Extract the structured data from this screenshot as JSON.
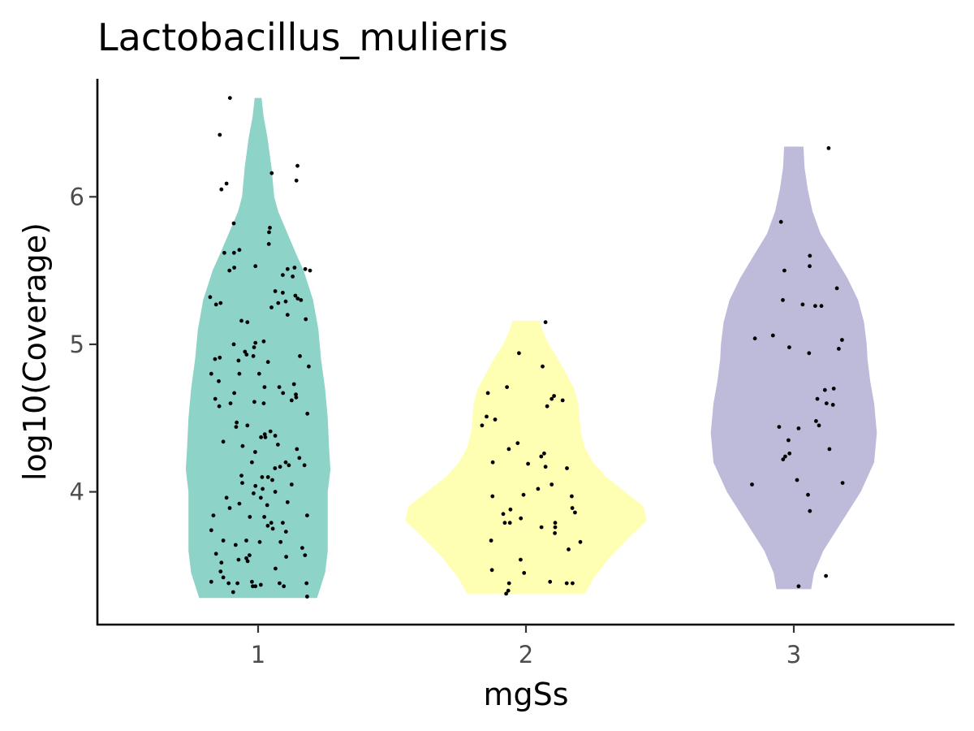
{
  "chart_data": {
    "type": "violin",
    "title": "Lactobacillus_mulieris",
    "xlabel": "mgSs",
    "ylabel": "log10(Coverage)",
    "categories": [
      "1",
      "2",
      "3"
    ],
    "x_range": [
      0.4,
      3.6
    ],
    "ylim": [
      3.1,
      6.8
    ],
    "y_ticks": [
      4,
      5,
      6
    ],
    "grid": false,
    "legend": "none",
    "series": [
      {
        "category": "1",
        "color": "#8DD3C7",
        "range": [
          3.28,
          6.67
        ],
        "density": [
          [
            3.28,
            0.22
          ],
          [
            3.45,
            0.25
          ],
          [
            3.6,
            0.26
          ],
          [
            3.8,
            0.26
          ],
          [
            4.0,
            0.26
          ],
          [
            4.15,
            0.27
          ],
          [
            4.3,
            0.265
          ],
          [
            4.5,
            0.26
          ],
          [
            4.7,
            0.25
          ],
          [
            4.9,
            0.235
          ],
          [
            5.1,
            0.225
          ],
          [
            5.3,
            0.205
          ],
          [
            5.5,
            0.17
          ],
          [
            5.6,
            0.145
          ],
          [
            5.75,
            0.11
          ],
          [
            5.9,
            0.075
          ],
          [
            6.0,
            0.06
          ],
          [
            6.2,
            0.05
          ],
          [
            6.4,
            0.035
          ],
          [
            6.55,
            0.02
          ],
          [
            6.67,
            0.013
          ]
        ],
        "points": [
          [
            0.825,
            3.39
          ],
          [
            0.89,
            3.38
          ],
          [
            0.923,
            3.38
          ],
          [
            0.977,
            3.39
          ],
          [
            0.99,
            3.36
          ],
          [
            1.08,
            3.38
          ],
          [
            1.096,
            3.36
          ],
          [
            1.181,
            3.38
          ],
          [
            1.183,
            3.29
          ],
          [
            0.907,
            3.32
          ],
          [
            0.98,
            3.36
          ],
          [
            0.87,
            3.42
          ],
          [
            1.01,
            3.37
          ],
          [
            0.86,
            3.46
          ],
          [
            0.927,
            3.54
          ],
          [
            0.956,
            3.55
          ],
          [
            0.961,
            3.53
          ],
          [
            1.065,
            3.48
          ],
          [
            1.105,
            3.56
          ],
          [
            1.175,
            3.57
          ],
          [
            0.863,
            3.52
          ],
          [
            0.968,
            3.57
          ],
          [
            0.843,
            3.58
          ],
          [
            0.916,
            3.64
          ],
          [
            1.084,
            3.66
          ],
          [
            1.165,
            3.62
          ],
          [
            1.006,
            3.66
          ],
          [
            0.956,
            3.67
          ],
          [
            1.104,
            3.73
          ],
          [
            0.87,
            3.67
          ],
          [
            0.825,
            3.74
          ],
          [
            1.055,
            3.75
          ],
          [
            1.036,
            3.77
          ],
          [
            1.049,
            3.79
          ],
          [
            1.092,
            3.79
          ],
          [
            0.833,
            3.84
          ],
          [
            1.183,
            3.84
          ],
          [
            0.969,
            3.83
          ],
          [
            1.023,
            3.83
          ],
          [
            0.894,
            3.89
          ],
          [
            0.93,
            3.92
          ],
          [
            1.034,
            3.91
          ],
          [
            0.882,
            3.96
          ],
          [
            0.983,
            3.99
          ],
          [
            1.01,
            3.96
          ],
          [
            1.11,
            3.93
          ],
          [
            1.064,
            4.0
          ],
          [
            0.99,
            4.04
          ],
          [
            1.017,
            4.02
          ],
          [
            1.053,
            4.08
          ],
          [
            0.941,
            4.06
          ],
          [
            1.125,
            4.05
          ],
          [
            1.015,
            4.1
          ],
          [
            1.037,
            4.1
          ],
          [
            0.938,
            4.11
          ],
          [
            1.063,
            4.16
          ],
          [
            1.082,
            4.17
          ],
          [
            1.103,
            4.2
          ],
          [
            1.115,
            4.18
          ],
          [
            1.173,
            4.18
          ],
          [
            0.977,
            4.2
          ],
          [
            1.154,
            4.23
          ],
          [
            1.145,
            4.29
          ],
          [
            0.989,
            4.27
          ],
          [
            0.942,
            4.31
          ],
          [
            0.87,
            4.34
          ],
          [
            1.074,
            4.32
          ],
          [
            1.011,
            4.37
          ],
          [
            1.027,
            4.37
          ],
          [
            1.064,
            4.38
          ],
          [
            1.025,
            4.39
          ],
          [
            1.046,
            4.41
          ],
          [
            0.918,
            4.44
          ],
          [
            0.96,
            4.45
          ],
          [
            0.92,
            4.47
          ],
          [
            1.184,
            4.53
          ],
          [
            0.855,
            4.58
          ],
          [
            0.897,
            4.6
          ],
          [
            0.986,
            4.61
          ],
          [
            1.021,
            4.6
          ],
          [
            1.125,
            4.62
          ],
          [
            1.142,
            4.64
          ],
          [
            0.84,
            4.63
          ],
          [
            1.093,
            4.67
          ],
          [
            0.911,
            4.67
          ],
          [
            1.141,
            4.66
          ],
          [
            1.024,
            4.71
          ],
          [
            1.079,
            4.71
          ],
          [
            1.134,
            4.73
          ],
          [
            0.853,
            4.75
          ],
          [
            0.93,
            4.8
          ],
          [
            0.825,
            4.8
          ],
          [
            1.004,
            4.8
          ],
          [
            1.189,
            4.85
          ],
          [
            0.839,
            4.9
          ],
          [
            0.857,
            4.91
          ],
          [
            0.927,
            4.89
          ],
          [
            0.982,
            4.92
          ],
          [
            0.957,
            4.93
          ],
          [
            1.037,
            4.88
          ],
          [
            1.156,
            4.92
          ],
          [
            0.951,
            4.95
          ],
          [
            0.985,
            4.98
          ],
          [
            0.909,
            5.0
          ],
          [
            0.99,
            5.01
          ],
          [
            1.021,
            5.02
          ],
          [
            1.178,
            5.17
          ],
          [
            0.96,
            5.15
          ],
          [
            0.938,
            5.16
          ],
          [
            1.11,
            5.2
          ],
          [
            1.05,
            5.25
          ],
          [
            1.075,
            5.28
          ],
          [
            1.103,
            5.29
          ],
          [
            0.843,
            5.27
          ],
          [
            0.86,
            5.28
          ],
          [
            1.148,
            5.31
          ],
          [
            1.16,
            5.3
          ],
          [
            1.139,
            5.33
          ],
          [
            1.092,
            5.35
          ],
          [
            1.064,
            5.36
          ],
          [
            0.821,
            5.32
          ],
          [
            1.129,
            5.46
          ],
          [
            1.092,
            5.47
          ],
          [
            1.176,
            5.51
          ],
          [
            1.136,
            5.52
          ],
          [
            0.99,
            5.53
          ],
          [
            1.194,
            5.5
          ],
          [
            1.11,
            5.51
          ],
          [
            0.893,
            5.5
          ],
          [
            0.911,
            5.52
          ],
          [
            0.91,
            5.62
          ],
          [
            0.874,
            5.62
          ],
          [
            0.93,
            5.64
          ],
          [
            1.04,
            5.68
          ],
          [
            1.041,
            5.76
          ],
          [
            1.044,
            5.79
          ],
          [
            0.909,
            5.82
          ],
          [
            0.863,
            6.05
          ],
          [
            0.882,
            6.09
          ],
          [
            1.051,
            6.16
          ],
          [
            1.143,
            6.11
          ],
          [
            1.147,
            6.21
          ],
          [
            0.857,
            6.42
          ],
          [
            0.895,
            6.67
          ]
        ]
      },
      {
        "category": "2",
        "color": "#FFFFB3",
        "range": [
          3.31,
          5.16
        ],
        "density": [
          [
            3.31,
            0.22
          ],
          [
            3.42,
            0.255
          ],
          [
            3.55,
            0.31
          ],
          [
            3.7,
            0.39
          ],
          [
            3.8,
            0.45
          ],
          [
            3.9,
            0.44
          ],
          [
            4.0,
            0.37
          ],
          [
            4.1,
            0.3
          ],
          [
            4.2,
            0.25
          ],
          [
            4.3,
            0.22
          ],
          [
            4.4,
            0.205
          ],
          [
            4.5,
            0.2
          ],
          [
            4.6,
            0.195
          ],
          [
            4.7,
            0.18
          ],
          [
            4.8,
            0.15
          ],
          [
            4.9,
            0.12
          ],
          [
            5.0,
            0.085
          ],
          [
            5.1,
            0.06
          ],
          [
            5.16,
            0.05
          ]
        ],
        "points": [
          [
            1.926,
            3.31
          ],
          [
            1.934,
            3.33
          ],
          [
            1.937,
            3.38
          ],
          [
            1.993,
            3.45
          ],
          [
            1.873,
            3.47
          ],
          [
            2.09,
            3.39
          ],
          [
            2.152,
            3.38
          ],
          [
            2.174,
            3.38
          ],
          [
            1.98,
            3.54
          ],
          [
            2.203,
            3.66
          ],
          [
            1.87,
            3.67
          ],
          [
            2.108,
            3.72
          ],
          [
            2.159,
            3.61
          ],
          [
            2.109,
            3.76
          ],
          [
            2.058,
            3.76
          ],
          [
            2.109,
            3.79
          ],
          [
            1.921,
            3.79
          ],
          [
            1.94,
            3.79
          ],
          [
            1.981,
            3.82
          ],
          [
            1.915,
            3.85
          ],
          [
            1.942,
            3.88
          ],
          [
            2.183,
            3.86
          ],
          [
            2.173,
            3.89
          ],
          [
            1.875,
            3.97
          ],
          [
            2.171,
            3.97
          ],
          [
            1.991,
            3.98
          ],
          [
            2.045,
            4.02
          ],
          [
            2.096,
            4.05
          ],
          [
            2.153,
            4.16
          ],
          [
            2.008,
            4.19
          ],
          [
            2.073,
            4.17
          ],
          [
            1.876,
            4.2
          ],
          [
            2.057,
            4.24
          ],
          [
            2.068,
            4.26
          ],
          [
            1.936,
            4.29
          ],
          [
            1.969,
            4.33
          ],
          [
            1.885,
            4.49
          ],
          [
            1.836,
            4.45
          ],
          [
            1.853,
            4.51
          ],
          [
            1.929,
            4.71
          ],
          [
            2.079,
            4.58
          ],
          [
            2.096,
            4.63
          ],
          [
            2.105,
            4.65
          ],
          [
            2.137,
            4.62
          ],
          [
            1.858,
            4.67
          ],
          [
            2.062,
            4.85
          ],
          [
            1.974,
            4.94
          ],
          [
            2.073,
            5.15
          ]
        ]
      },
      {
        "category": "3",
        "color": "#BEBADA",
        "range": [
          3.34,
          6.34
        ],
        "density": [
          [
            3.34,
            0.065
          ],
          [
            3.45,
            0.075
          ],
          [
            3.6,
            0.11
          ],
          [
            3.8,
            0.18
          ],
          [
            4.0,
            0.25
          ],
          [
            4.2,
            0.3
          ],
          [
            4.4,
            0.31
          ],
          [
            4.6,
            0.3
          ],
          [
            4.75,
            0.285
          ],
          [
            4.9,
            0.275
          ],
          [
            5.0,
            0.272
          ],
          [
            5.15,
            0.262
          ],
          [
            5.3,
            0.24
          ],
          [
            5.45,
            0.2
          ],
          [
            5.6,
            0.15
          ],
          [
            5.75,
            0.1
          ],
          [
            5.9,
            0.07
          ],
          [
            6.05,
            0.052
          ],
          [
            6.2,
            0.04
          ],
          [
            6.34,
            0.036
          ]
        ],
        "points": [
          [
            3.018,
            3.36
          ],
          [
            3.12,
            3.43
          ],
          [
            3.06,
            3.87
          ],
          [
            3.053,
            3.98
          ],
          [
            3.182,
            4.06
          ],
          [
            2.844,
            4.05
          ],
          [
            3.012,
            4.08
          ],
          [
            2.96,
            4.22
          ],
          [
            2.968,
            4.24
          ],
          [
            2.984,
            4.26
          ],
          [
            3.133,
            4.29
          ],
          [
            2.98,
            4.35
          ],
          [
            3.018,
            4.43
          ],
          [
            2.945,
            4.44
          ],
          [
            3.083,
            4.48
          ],
          [
            3.094,
            4.45
          ],
          [
            3.146,
            4.59
          ],
          [
            3.122,
            4.6
          ],
          [
            3.088,
            4.63
          ],
          [
            3.116,
            4.69
          ],
          [
            3.149,
            4.7
          ],
          [
            2.855,
            5.04
          ],
          [
            3.168,
            4.97
          ],
          [
            3.18,
            5.03
          ],
          [
            2.983,
            4.98
          ],
          [
            3.057,
            4.94
          ],
          [
            2.922,
            5.06
          ],
          [
            2.959,
            5.3
          ],
          [
            3.033,
            5.27
          ],
          [
            3.08,
            5.26
          ],
          [
            3.103,
            5.26
          ],
          [
            3.161,
            5.38
          ],
          [
            2.965,
            5.5
          ],
          [
            3.059,
            5.53
          ],
          [
            3.06,
            5.6
          ],
          [
            2.952,
            5.83
          ],
          [
            3.13,
            6.33
          ]
        ]
      }
    ]
  }
}
